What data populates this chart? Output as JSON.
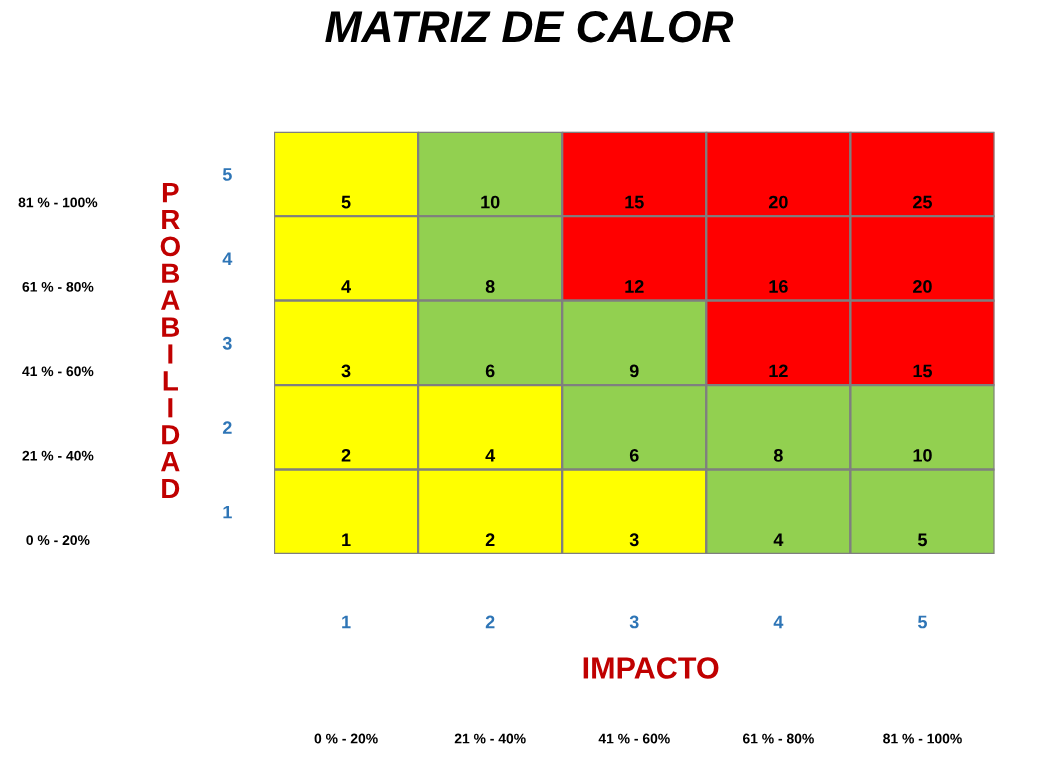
{
  "chart_data": {
    "type": "heatmap",
    "title": "MATRIZ DE CALOR",
    "xlabel": "IMPACTO",
    "ylabel": "PROBABILIDAD",
    "categories": [
      "1",
      "2",
      "3",
      "4",
      "5"
    ],
    "y_categories": [
      "5",
      "4",
      "3",
      "2",
      "1"
    ],
    "y2_categories": [
      "81 % - 100%",
      "61 % - 80%",
      "41 % - 60%",
      "21 % - 40%",
      "0 % - 20%"
    ],
    "annotations": [
      "0 % - 20%",
      "21 % - 40%",
      "41 % - 60%",
      "61 % - 80%",
      "81 % - 100%"
    ],
    "cells": [
      [
        5,
        10,
        15,
        20,
        25
      ],
      [
        4,
        8,
        12,
        16,
        20
      ],
      [
        3,
        6,
        9,
        12,
        15
      ],
      [
        2,
        4,
        6,
        8,
        10
      ],
      [
        1,
        2,
        3,
        4,
        5
      ]
    ],
    "colors": [
      [
        "#ffff00",
        "#92d050",
        "#ff0000",
        "#ff0000",
        "#ff0000"
      ],
      [
        "#ffff00",
        "#92d050",
        "#ff0000",
        "#ff0000",
        "#ff0000"
      ],
      [
        "#ffff00",
        "#92d050",
        "#92d050",
        "#ff0000",
        "#ff0000"
      ],
      [
        "#ffff00",
        "#ffff00",
        "#92d050",
        "#92d050",
        "#92d050"
      ],
      [
        "#ffff00",
        "#ffff00",
        "#ffff00",
        "#92d050",
        "#92d050"
      ]
    ],
    "data_labels": true
  }
}
